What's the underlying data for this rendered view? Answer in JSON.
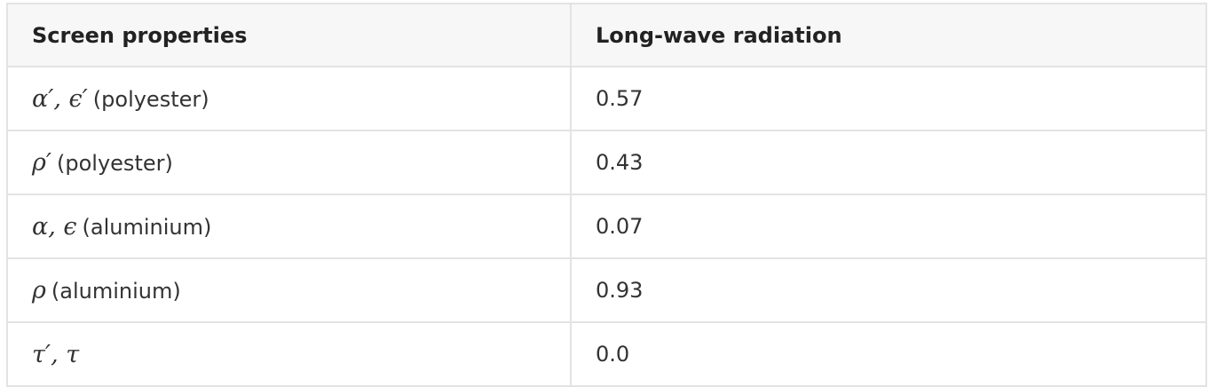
{
  "table": {
    "headers": [
      "Screen properties",
      "Long-wave radiation"
    ],
    "rows": [
      {
        "symbol": "α′, ϵ′",
        "note": "(polyester)",
        "value": "0.57"
      },
      {
        "symbol": "ρ′",
        "note": "(polyester)",
        "value": "0.43"
      },
      {
        "symbol": "α, ϵ",
        "note": "(aluminium)",
        "value": "0.07"
      },
      {
        "symbol": "ρ",
        "note": "(aluminium)",
        "value": "0.93"
      },
      {
        "symbol": "τ′, τ",
        "note": "",
        "value": "0.0"
      }
    ]
  }
}
